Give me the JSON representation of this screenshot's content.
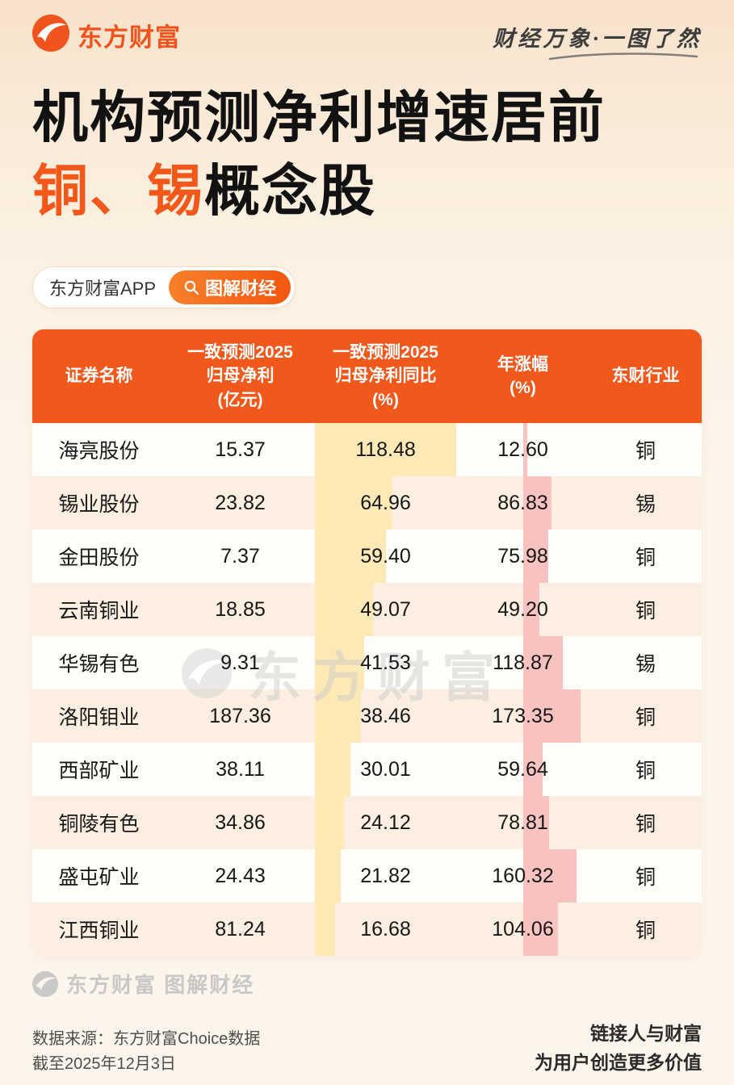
{
  "brand": {
    "logo_text": "东方财富",
    "tagline": "财经万象·一图了然"
  },
  "title": {
    "line1": "机构预测净利增速居前",
    "line2_highlight": "铜、锡",
    "line2_rest": "概念股"
  },
  "search_pill": {
    "left_label": "东方财富APP",
    "right_label": "图解财经"
  },
  "colors": {
    "accent": "#f1581b",
    "title_highlight": "#f2581a",
    "header_bg": "#f1581b",
    "row_alt": "#fcefe2"
  },
  "table": {
    "headers": [
      "证券名称",
      "一致预测2025\n归母净利\n(亿元)",
      "一致预测2025\n归母净利同比\n(%)",
      "年涨幅\n(%)",
      "东财行业"
    ],
    "bar_colors": {
      "yoy": "#fce9b5",
      "change": "#f8c2c0"
    },
    "rows": [
      {
        "name": "海亮股份",
        "profit": "15.37",
        "yoy": "118.48",
        "change": "12.60",
        "industry": "铜"
      },
      {
        "name": "锡业股份",
        "profit": "23.82",
        "yoy": "64.96",
        "change": "86.83",
        "industry": "锡"
      },
      {
        "name": "金田股份",
        "profit": "7.37",
        "yoy": "59.40",
        "change": "75.98",
        "industry": "铜"
      },
      {
        "name": "云南铜业",
        "profit": "18.85",
        "yoy": "49.07",
        "change": "49.20",
        "industry": "铜"
      },
      {
        "name": "华锡有色",
        "profit": "9.31",
        "yoy": "41.53",
        "change": "118.87",
        "industry": "锡"
      },
      {
        "name": "洛阳钼业",
        "profit": "187.36",
        "yoy": "38.46",
        "change": "173.35",
        "industry": "铜"
      },
      {
        "name": "西部矿业",
        "profit": "38.11",
        "yoy": "30.01",
        "change": "59.64",
        "industry": "铜"
      },
      {
        "name": "铜陵有色",
        "profit": "34.86",
        "yoy": "24.12",
        "change": "78.81",
        "industry": "铜"
      },
      {
        "name": "盛屯矿业",
        "profit": "24.43",
        "yoy": "21.82",
        "change": "160.32",
        "industry": "铜"
      },
      {
        "name": "江西铜业",
        "profit": "81.24",
        "yoy": "16.68",
        "change": "104.06",
        "industry": "铜"
      }
    ]
  },
  "chart_data": {
    "type": "table",
    "title": "机构预测净利增速居前 铜、锡概念股",
    "columns": [
      "证券名称",
      "一致预测2025归母净利(亿元)",
      "一致预测2025归母净利同比(%)",
      "年涨幅(%)",
      "东财行业"
    ],
    "rows": [
      [
        "海亮股份",
        15.37,
        118.48,
        12.6,
        "铜"
      ],
      [
        "锡业股份",
        23.82,
        64.96,
        86.83,
        "锡"
      ],
      [
        "金田股份",
        7.37,
        59.4,
        75.98,
        "铜"
      ],
      [
        "云南铜业",
        18.85,
        49.07,
        49.2,
        "铜"
      ],
      [
        "华锡有色",
        9.31,
        41.53,
        118.87,
        "锡"
      ],
      [
        "洛阳钼业",
        187.36,
        38.46,
        173.35,
        "铜"
      ],
      [
        "西部矿业",
        38.11,
        30.01,
        59.64,
        "铜"
      ],
      [
        "铜陵有色",
        34.86,
        24.12,
        78.81,
        "铜"
      ],
      [
        "盛屯矿业",
        24.43,
        21.82,
        160.32,
        "铜"
      ],
      [
        "江西铜业",
        81.24,
        16.68,
        104.06,
        "铜"
      ]
    ]
  },
  "watermarks": {
    "center": "东方财富",
    "bottom": "东方财富 图解财经"
  },
  "footer": {
    "source": "数据来源：东方财富Choice数据",
    "asof": "截至2025年12月3日",
    "slogan1": "链接人与财富",
    "slogan2": "为用户创造更多价值"
  }
}
